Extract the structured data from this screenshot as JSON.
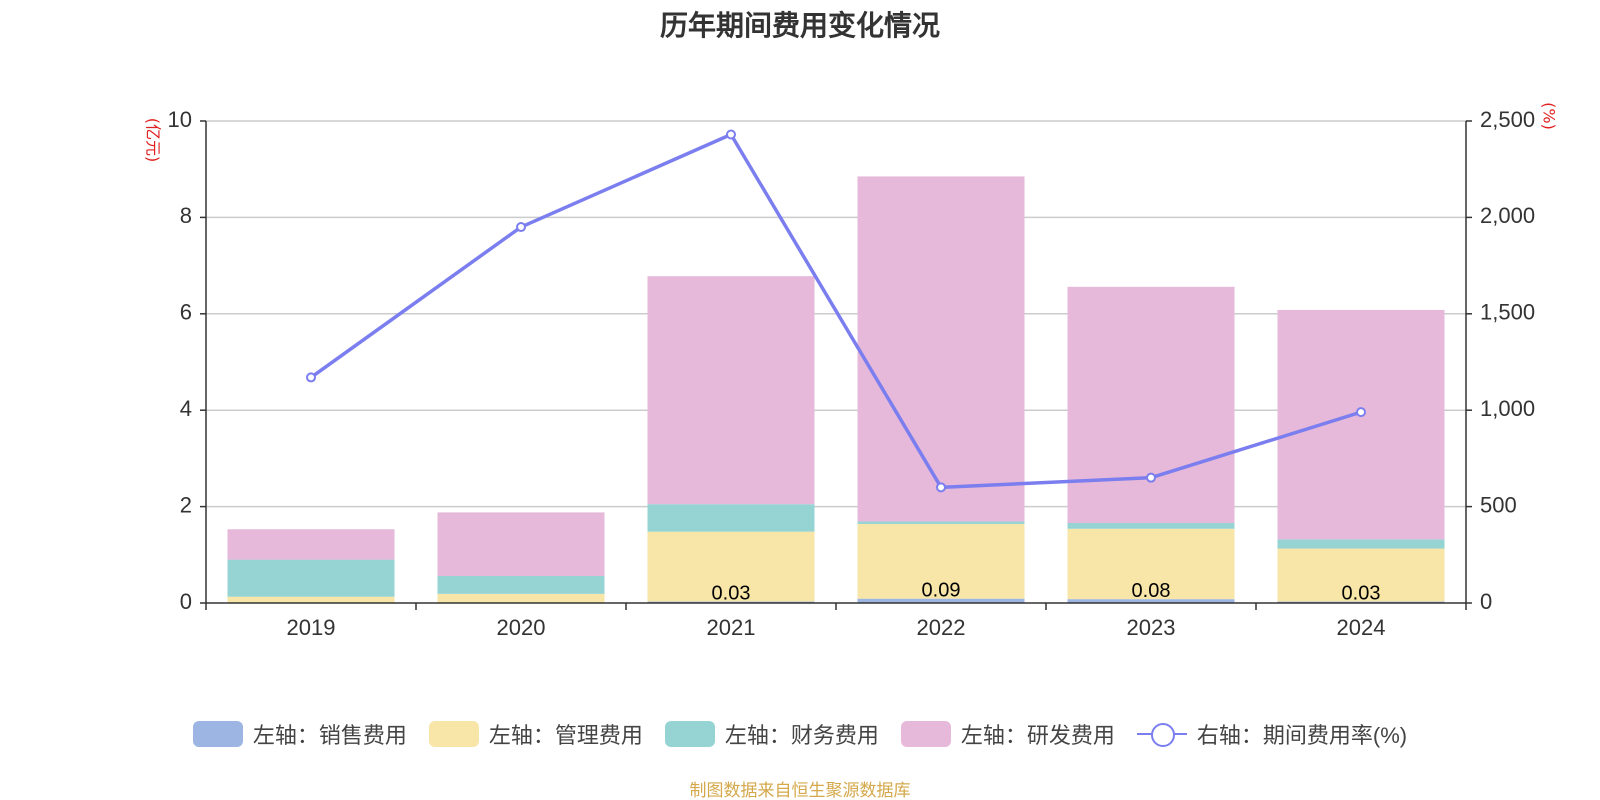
{
  "title": "历年期间费用变化情况",
  "source": "制图数据来自恒生聚源数据库",
  "left_unit": "(亿元)",
  "right_unit": "(%)",
  "colors": {
    "sales": "#9db5e3",
    "admin": "#f7e6a8",
    "finance": "#96d3d3",
    "rnd": "#e6b8d9",
    "rate": "#7b7eef",
    "grid": "#cccccc",
    "axis": "#333333"
  },
  "legend": [
    {
      "label": "左轴：销售费用",
      "key": "sales",
      "kind": "bar"
    },
    {
      "label": "左轴：管理费用",
      "key": "admin",
      "kind": "bar"
    },
    {
      "label": "左轴：财务费用",
      "key": "finance",
      "kind": "bar"
    },
    {
      "label": "左轴：研发费用",
      "key": "rnd",
      "kind": "bar"
    },
    {
      "label": "右轴：期间费用率(%)",
      "key": "rate",
      "kind": "line"
    }
  ],
  "chart_data": {
    "type": "bar",
    "title": "历年期间费用变化情况",
    "categories": [
      "2019",
      "2020",
      "2021",
      "2022",
      "2023",
      "2024"
    ],
    "y_left": {
      "unit": "(亿元)",
      "lim": [
        0,
        10
      ],
      "ticks": [
        "0",
        "2",
        "4",
        "6",
        "8",
        "10"
      ]
    },
    "y_right": {
      "unit": "(%)",
      "lim": [
        0,
        2500
      ],
      "ticks": [
        "0",
        "500",
        "1,000",
        "1,500",
        "2,000",
        "2,500"
      ]
    },
    "grid": true,
    "legend_position": "bottom",
    "series": [
      {
        "name": "左轴：销售费用",
        "key": "sales",
        "axis": "left",
        "stack": true,
        "values": [
          0.01,
          0.01,
          0.03,
          0.09,
          0.08,
          0.03
        ]
      },
      {
        "name": "左轴：管理费用",
        "key": "admin",
        "axis": "left",
        "stack": true,
        "values": [
          0.12,
          0.18,
          1.45,
          1.55,
          1.46,
          1.1
        ]
      },
      {
        "name": "左轴：财务费用",
        "key": "finance",
        "axis": "left",
        "stack": true,
        "values": [
          0.77,
          0.37,
          0.57,
          0.05,
          0.12,
          0.19
        ]
      },
      {
        "name": "左轴：研发费用",
        "key": "rnd",
        "axis": "left",
        "stack": true,
        "values": [
          0.63,
          1.32,
          4.73,
          7.16,
          4.9,
          4.76
        ]
      },
      {
        "name": "右轴：期间费用率(%)",
        "key": "rate",
        "axis": "right",
        "type": "line",
        "values": [
          1170,
          1950,
          2430,
          600,
          650,
          990
        ]
      }
    ],
    "visible_bar_labels": [
      {
        "series": "sales",
        "index": 2,
        "text": "0.03"
      },
      {
        "series": "sales",
        "index": 3,
        "text": "0.09"
      },
      {
        "series": "sales",
        "index": 4,
        "text": "0.08"
      },
      {
        "series": "sales",
        "index": 5,
        "text": "0.03"
      }
    ]
  }
}
